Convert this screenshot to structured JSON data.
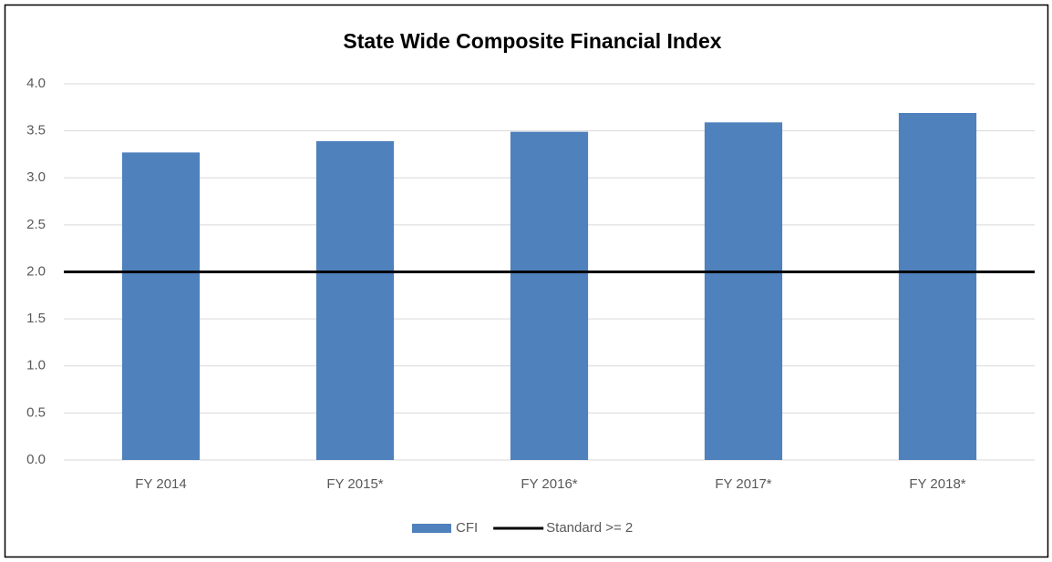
{
  "chart_data": {
    "type": "bar",
    "title": "State Wide Composite Financial Index",
    "categories": [
      "FY 2014",
      "FY 2015*",
      "FY 2016*",
      "FY 2017*",
      "FY 2018*"
    ],
    "series": [
      {
        "name": "CFI",
        "type": "bar",
        "color": "#4f81bd",
        "values": [
          3.27,
          3.39,
          3.49,
          3.59,
          3.69
        ]
      },
      {
        "name": "Standard >= 2",
        "type": "line",
        "color": "#000000",
        "values": [
          2,
          2,
          2,
          2,
          2
        ]
      }
    ],
    "ylim": [
      0,
      4
    ],
    "yticks": [
      {
        "value": 0,
        "label": "0.0"
      },
      0.5,
      {
        "value": 1,
        "label": "1.0"
      },
      1.5,
      {
        "value": 2,
        "label": "2.0"
      },
      2.5,
      {
        "value": 3,
        "label": "3.0"
      },
      3.5,
      {
        "value": 4,
        "label": "4.0"
      }
    ],
    "grid": true,
    "legend": "bottom"
  }
}
